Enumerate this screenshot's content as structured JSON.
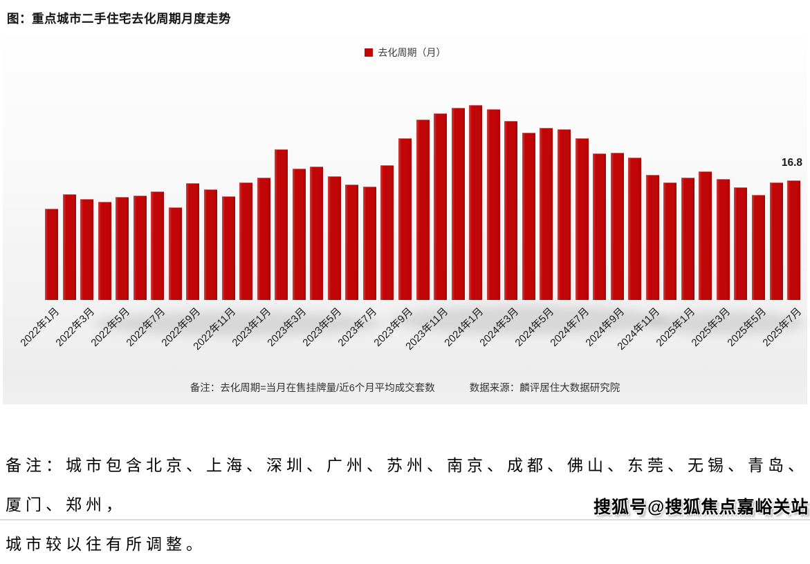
{
  "title": "图：重点城市二手住宅去化周期月度走势",
  "legend": {
    "label": "去化周期（月）",
    "color": "#c00606"
  },
  "chart_data": {
    "type": "bar",
    "title": "重点城市二手住宅去化周期月度走势",
    "xlabel": "",
    "ylabel": "去化周期（月）",
    "ylim": [
      0,
      30
    ],
    "grid": false,
    "legend_position": "top",
    "legend_entries": [
      "去化周期（月）"
    ],
    "bar_color": "#c00606",
    "last_point_label": "16.8",
    "categories": [
      "2022年1月",
      "2022年2月",
      "2022年3月",
      "2022年4月",
      "2022年5月",
      "2022年6月",
      "2022年7月",
      "2022年8月",
      "2022年9月",
      "2022年10月",
      "2022年11月",
      "2022年12月",
      "2023年1月",
      "2023年2月",
      "2023年3月",
      "2023年4月",
      "2023年5月",
      "2023年6月",
      "2023年7月",
      "2023年8月",
      "2023年9月",
      "2023年10月",
      "2023年11月",
      "2023年12月",
      "2024年1月",
      "2024年2月",
      "2024年3月",
      "2024年4月",
      "2024年5月",
      "2024年6月",
      "2024年7月",
      "2024年8月",
      "2024年9月",
      "2024年10月",
      "2024年11月",
      "2024年12月",
      "2025年1月",
      "2025年2月",
      "2025年3月",
      "2025年4月",
      "2025年5月",
      "2025年6月",
      "2025年7月"
    ],
    "values": [
      12.8,
      14.9,
      14.2,
      13.8,
      14.5,
      14.7,
      15.2,
      13.0,
      16.4,
      15.5,
      14.6,
      16.5,
      17.2,
      21.2,
      18.4,
      18.7,
      17.4,
      16.2,
      15.9,
      18.9,
      22.7,
      25.3,
      26.2,
      27.0,
      27.4,
      26.8,
      25.1,
      23.5,
      24.2,
      24.0,
      22.7,
      20.6,
      20.7,
      20.0,
      17.6,
      16.5,
      17.2,
      18.1,
      17.0,
      15.8,
      14.8,
      16.5,
      16.8
    ],
    "x_tick_labels": [
      "2022年1月",
      "2022年3月",
      "2022年5月",
      "2022年7月",
      "2022年9月",
      "2022年11月",
      "2023年1月",
      "2023年3月",
      "2023年5月",
      "2023年7月",
      "2023年9月",
      "2023年11月",
      "2024年1月",
      "2024年3月",
      "2024年5月",
      "2024年7月",
      "2024年9月",
      "2024年11月",
      "2025年1月",
      "2025年3月",
      "2025年5月",
      "2025年7月"
    ],
    "x_tick_interval": 2
  },
  "notes": {
    "definition": "备注：去化周期=当月在售挂牌量/近6个月平均成交套数",
    "source": "数据来源：麟评居住大数据研究院"
  },
  "footer": {
    "line1": "备注：城市包含北京、上海、深圳、广州、苏州、南京、成都、佛山、东莞、无锡、青岛、厦门、郑州，",
    "line2": "城市较以往有所调整。",
    "watermark": "搜狐号@搜狐焦点嘉峪关站"
  }
}
